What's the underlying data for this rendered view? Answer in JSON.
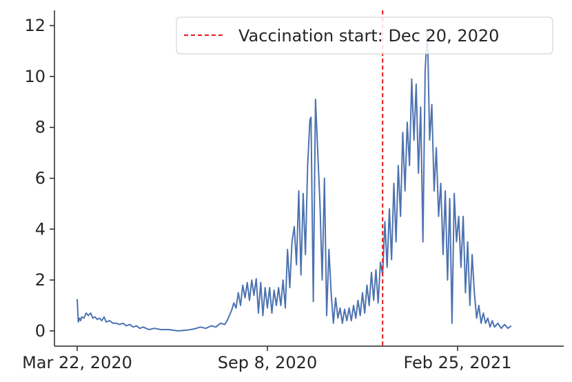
{
  "chart_data": {
    "type": "line",
    "title": "",
    "xlabel": "",
    "ylabel": "",
    "x_tick_labels": [
      "Mar 22, 2020",
      "Sep 8, 2020",
      "Feb 25, 2021"
    ],
    "y_ticks": [
      0,
      2,
      4,
      6,
      8,
      10,
      12
    ],
    "ylim": [
      -0.6,
      12.6
    ],
    "legend_placement": "top-right",
    "grid": false,
    "colors": {
      "series": "#4c72b0",
      "vaccination_line": "#e41a1c"
    },
    "vaccination_line": {
      "date": "2020-12-20",
      "label": "Vaccination start: Dec 20, 2020"
    },
    "series": [
      {
        "values": [
          [
            "2020-03-22",
            1.25
          ],
          [
            "2020-03-23",
            0.35
          ],
          [
            "2020-03-24",
            0.5
          ],
          [
            "2020-03-25",
            0.4
          ],
          [
            "2020-03-26",
            0.55
          ],
          [
            "2020-03-28",
            0.5
          ],
          [
            "2020-03-30",
            0.7
          ],
          [
            "2020-04-01",
            0.6
          ],
          [
            "2020-04-03",
            0.7
          ],
          [
            "2020-04-05",
            0.5
          ],
          [
            "2020-04-07",
            0.55
          ],
          [
            "2020-04-09",
            0.45
          ],
          [
            "2020-04-11",
            0.5
          ],
          [
            "2020-04-13",
            0.4
          ],
          [
            "2020-04-15",
            0.55
          ],
          [
            "2020-04-17",
            0.35
          ],
          [
            "2020-04-20",
            0.4
          ],
          [
            "2020-04-23",
            0.3
          ],
          [
            "2020-04-26",
            0.3
          ],
          [
            "2020-04-29",
            0.25
          ],
          [
            "2020-05-02",
            0.3
          ],
          [
            "2020-05-05",
            0.2
          ],
          [
            "2020-05-08",
            0.25
          ],
          [
            "2020-05-11",
            0.15
          ],
          [
            "2020-05-14",
            0.2
          ],
          [
            "2020-05-17",
            0.1
          ],
          [
            "2020-05-20",
            0.15
          ],
          [
            "2020-05-25",
            0.05
          ],
          [
            "2020-05-30",
            0.1
          ],
          [
            "2020-06-05",
            0.05
          ],
          [
            "2020-06-12",
            0.05
          ],
          [
            "2020-06-20",
            0.0
          ],
          [
            "2020-06-28",
            0.03
          ],
          [
            "2020-07-05",
            0.08
          ],
          [
            "2020-07-10",
            0.15
          ],
          [
            "2020-07-15",
            0.1
          ],
          [
            "2020-07-20",
            0.2
          ],
          [
            "2020-07-24",
            0.15
          ],
          [
            "2020-07-28",
            0.3
          ],
          [
            "2020-08-01",
            0.25
          ],
          [
            "2020-08-03",
            0.4
          ],
          [
            "2020-08-05",
            0.6
          ],
          [
            "2020-08-07",
            0.8
          ],
          [
            "2020-08-09",
            1.1
          ],
          [
            "2020-08-11",
            0.9
          ],
          [
            "2020-08-13",
            1.5
          ],
          [
            "2020-08-15",
            1.0
          ],
          [
            "2020-08-17",
            1.8
          ],
          [
            "2020-08-19",
            1.3
          ],
          [
            "2020-08-21",
            1.9
          ],
          [
            "2020-08-23",
            1.2
          ],
          [
            "2020-08-25",
            2.0
          ],
          [
            "2020-08-27",
            1.4
          ],
          [
            "2020-08-29",
            2.05
          ],
          [
            "2020-08-31",
            0.7
          ],
          [
            "2020-09-02",
            1.9
          ],
          [
            "2020-09-04",
            0.6
          ],
          [
            "2020-09-06",
            1.7
          ],
          [
            "2020-09-08",
            0.9
          ],
          [
            "2020-09-10",
            1.7
          ],
          [
            "2020-09-12",
            0.7
          ],
          [
            "2020-09-14",
            1.6
          ],
          [
            "2020-09-16",
            1.0
          ],
          [
            "2020-09-18",
            1.7
          ],
          [
            "2020-09-20",
            1.0
          ],
          [
            "2020-09-22",
            2.0
          ],
          [
            "2020-09-24",
            0.9
          ],
          [
            "2020-09-26",
            3.2
          ],
          [
            "2020-09-28",
            1.7
          ],
          [
            "2020-09-30",
            3.5
          ],
          [
            "2020-10-02",
            4.1
          ],
          [
            "2020-10-04",
            2.6
          ],
          [
            "2020-10-06",
            5.5
          ],
          [
            "2020-10-08",
            2.2
          ],
          [
            "2020-10-10",
            5.4
          ],
          [
            "2020-10-12",
            3.0
          ],
          [
            "2020-10-14",
            6.5
          ],
          [
            "2020-10-16",
            8.3
          ],
          [
            "2020-10-17",
            8.4
          ],
          [
            "2020-10-19",
            1.15
          ],
          [
            "2020-10-21",
            9.1
          ],
          [
            "2020-10-23",
            7.0
          ],
          [
            "2020-10-25",
            5.0
          ],
          [
            "2020-10-27",
            2.0
          ],
          [
            "2020-10-29",
            6.0
          ],
          [
            "2020-10-31",
            0.6
          ],
          [
            "2020-11-02",
            3.2
          ],
          [
            "2020-11-04",
            1.5
          ],
          [
            "2020-11-06",
            0.3
          ],
          [
            "2020-11-08",
            1.3
          ],
          [
            "2020-11-10",
            0.5
          ],
          [
            "2020-11-12",
            0.9
          ],
          [
            "2020-11-14",
            0.3
          ],
          [
            "2020-11-16",
            0.85
          ],
          [
            "2020-11-18",
            0.4
          ],
          [
            "2020-11-20",
            0.9
          ],
          [
            "2020-11-22",
            0.4
          ],
          [
            "2020-11-24",
            1.0
          ],
          [
            "2020-11-26",
            0.5
          ],
          [
            "2020-11-28",
            1.2
          ],
          [
            "2020-11-30",
            0.6
          ],
          [
            "2020-12-02",
            1.5
          ],
          [
            "2020-12-04",
            0.7
          ],
          [
            "2020-12-06",
            1.8
          ],
          [
            "2020-12-08",
            1.0
          ],
          [
            "2020-12-10",
            2.3
          ],
          [
            "2020-12-12",
            1.2
          ],
          [
            "2020-12-14",
            2.4
          ],
          [
            "2020-12-16",
            1.1
          ],
          [
            "2020-12-18",
            2.7
          ],
          [
            "2020-12-20",
            2.2
          ],
          [
            "2020-12-22",
            4.3
          ],
          [
            "2020-12-24",
            2.5
          ],
          [
            "2020-12-26",
            4.8
          ],
          [
            "2020-12-28",
            2.8
          ],
          [
            "2020-12-30",
            5.8
          ],
          [
            "2021-01-01",
            3.5
          ],
          [
            "2021-01-03",
            6.5
          ],
          [
            "2021-01-05",
            4.5
          ],
          [
            "2021-01-07",
            7.8
          ],
          [
            "2021-01-09",
            5.5
          ],
          [
            "2021-01-11",
            8.2
          ],
          [
            "2021-01-13",
            6.5
          ],
          [
            "2021-01-15",
            9.9
          ],
          [
            "2021-01-17",
            7.5
          ],
          [
            "2021-01-19",
            9.7
          ],
          [
            "2021-01-21",
            6.2
          ],
          [
            "2021-01-23",
            8.8
          ],
          [
            "2021-01-25",
            3.5
          ],
          [
            "2021-01-27",
            10.2
          ],
          [
            "2021-01-29",
            11.9
          ],
          [
            "2021-01-31",
            7.5
          ],
          [
            "2021-02-02",
            8.9
          ],
          [
            "2021-02-04",
            5.5
          ],
          [
            "2021-02-06",
            7.2
          ],
          [
            "2021-02-08",
            4.5
          ],
          [
            "2021-02-10",
            5.8
          ],
          [
            "2021-02-12",
            3.0
          ],
          [
            "2021-02-14",
            5.5
          ],
          [
            "2021-02-16",
            2.0
          ],
          [
            "2021-02-18",
            5.2
          ],
          [
            "2021-02-20",
            0.3
          ],
          [
            "2021-02-22",
            5.4
          ],
          [
            "2021-02-24",
            3.5
          ],
          [
            "2021-02-26",
            4.5
          ],
          [
            "2021-02-28",
            2.5
          ],
          [
            "2021-03-02",
            4.5
          ],
          [
            "2021-03-04",
            1.5
          ],
          [
            "2021-03-06",
            3.5
          ],
          [
            "2021-03-08",
            1.0
          ],
          [
            "2021-03-10",
            3.0
          ],
          [
            "2021-03-12",
            1.5
          ],
          [
            "2021-03-14",
            0.5
          ],
          [
            "2021-03-16",
            1.0
          ],
          [
            "2021-03-18",
            0.3
          ],
          [
            "2021-03-20",
            0.7
          ],
          [
            "2021-03-22",
            0.3
          ],
          [
            "2021-03-24",
            0.5
          ],
          [
            "2021-03-26",
            0.15
          ],
          [
            "2021-03-28",
            0.4
          ],
          [
            "2021-03-30",
            0.15
          ],
          [
            "2021-04-02",
            0.3
          ],
          [
            "2021-04-05",
            0.1
          ],
          [
            "2021-04-08",
            0.25
          ],
          [
            "2021-04-11",
            0.1
          ],
          [
            "2021-04-14",
            0.2
          ]
        ]
      }
    ]
  }
}
